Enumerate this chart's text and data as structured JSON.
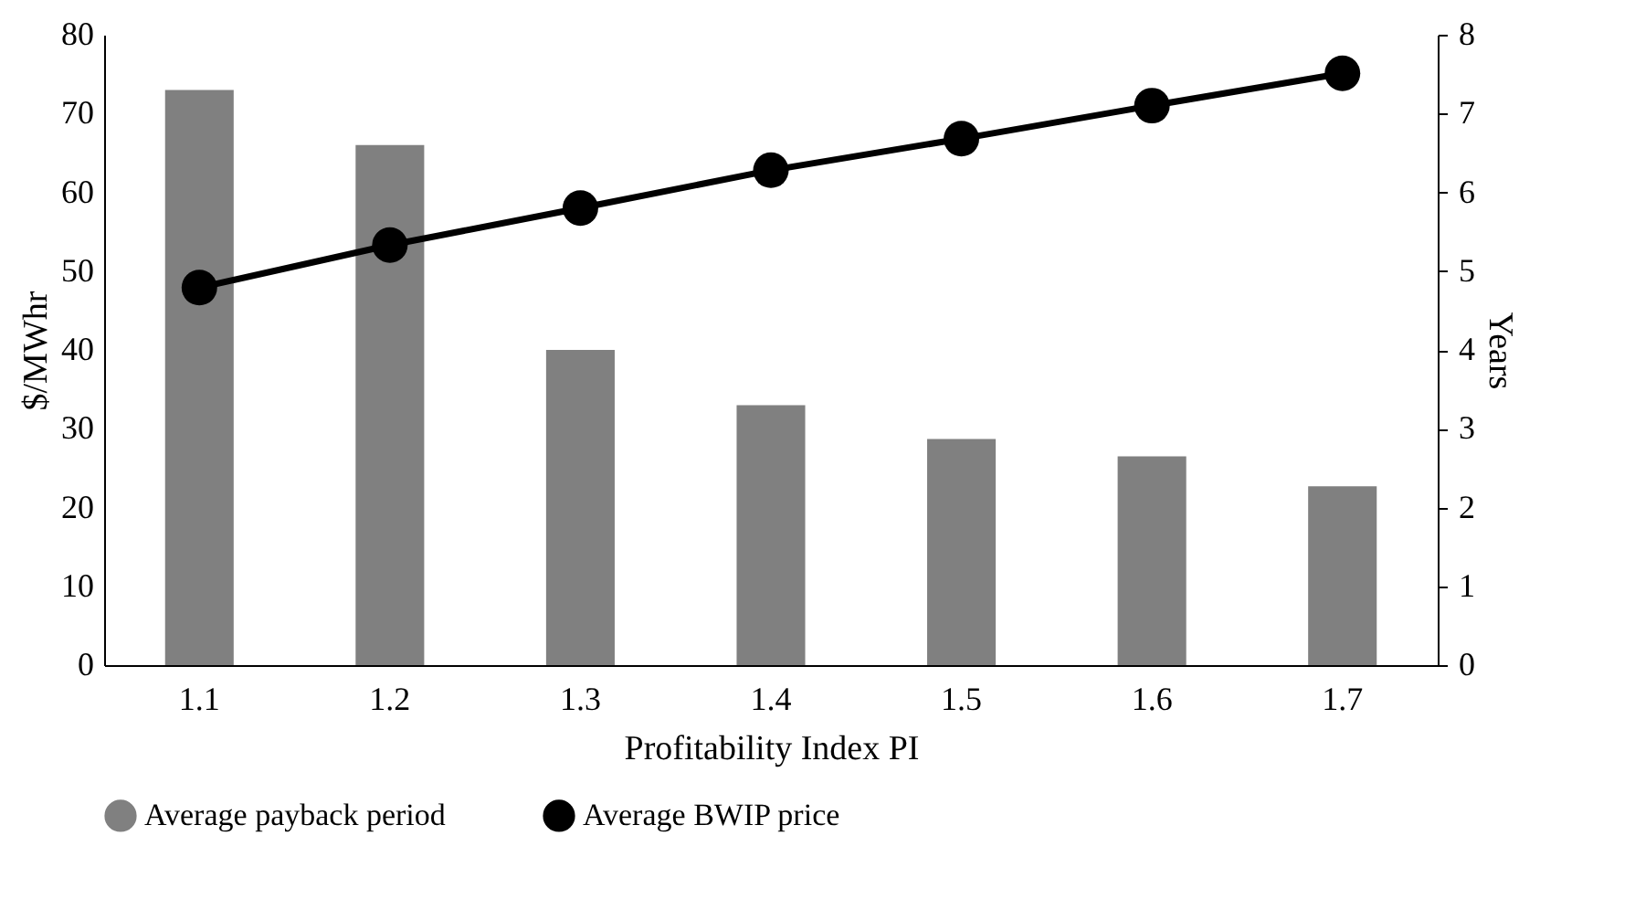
{
  "chart_data": {
    "type": "bar",
    "xlabel": "Profitability Index PI",
    "ylabel": "$/MWhr",
    "y2label": "Years",
    "categories": [
      "1.1",
      "1.2",
      "1.3",
      "1.4",
      "1.5",
      "1.6",
      "1.7"
    ],
    "series": [
      {
        "name": "Average payback period",
        "type": "bar",
        "axis": "y2",
        "color": "#808080",
        "values": [
          7.3,
          6.6,
          4.0,
          3.3,
          2.87,
          2.65,
          2.27
        ]
      },
      {
        "name": "Average BWIP price",
        "type": "line",
        "axis": "y",
        "color": "#000000",
        "marker": "circle",
        "values": [
          47.9,
          53.3,
          58.0,
          62.8,
          66.8,
          71.0,
          75.1
        ]
      }
    ],
    "ylim": [
      0,
      80
    ],
    "yticks": [
      0,
      10,
      20,
      30,
      40,
      50,
      60,
      70,
      80
    ],
    "y2lim": [
      0,
      8
    ],
    "y2ticks": [
      0,
      1,
      2,
      3,
      4,
      5,
      6,
      7,
      8
    ],
    "grid": false,
    "legend": "bottom"
  }
}
